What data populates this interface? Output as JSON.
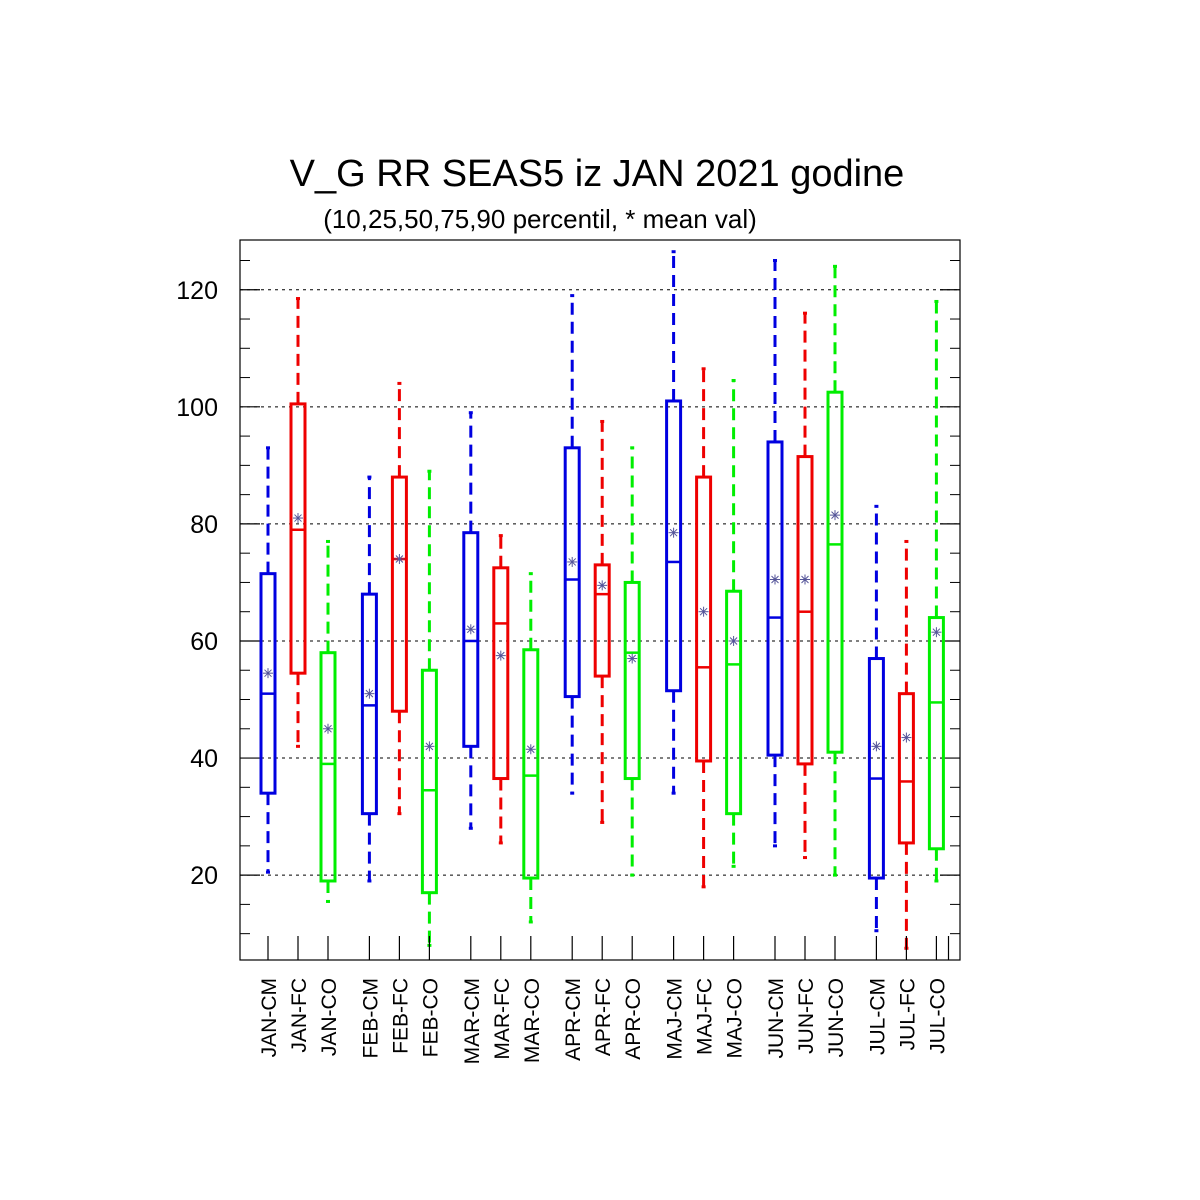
{
  "chart_data": {
    "type": "box",
    "title": "V_G RR SEAS5 iz JAN 2021 godine",
    "subtitle": "(10,25,50,75,90 percentil, * mean val)",
    "xlabel": "",
    "ylabel": "",
    "ylim": [
      5.5,
      128.5
    ],
    "yticks": [
      20,
      40,
      60,
      80,
      100,
      120
    ],
    "grid": true,
    "series_colors": {
      "CM": "#0000e0",
      "FC": "#ee0000",
      "CO": "#00ee00"
    },
    "mean_marker_color": "#555599",
    "categories": [
      "JAN-CM",
      "JAN-FC",
      "JAN-CO",
      "FEB-CM",
      "FEB-FC",
      "FEB-CO",
      "MAR-CM",
      "MAR-FC",
      "MAR-CO",
      "APR-CM",
      "APR-FC",
      "APR-CO",
      "MAJ-CM",
      "MAJ-FC",
      "MAJ-CO",
      "JUN-CM",
      "JUN-FC",
      "JUN-CO",
      "JUL-CM",
      "JUL-FC",
      "JUL-CO"
    ],
    "boxes": [
      {
        "label": "JAN-CM",
        "series": "CM",
        "p10": 20.5,
        "p25": 34,
        "p50": 51,
        "p75": 71.5,
        "p90": 93,
        "mean": 54.5
      },
      {
        "label": "JAN-FC",
        "series": "FC",
        "p10": 42,
        "p25": 54.5,
        "p50": 79,
        "p75": 100.5,
        "p90": 118.5,
        "mean": 81
      },
      {
        "label": "JAN-CO",
        "series": "CO",
        "p10": 15.5,
        "p25": 19,
        "p50": 39,
        "p75": 58,
        "p90": 77,
        "mean": 45
      },
      {
        "label": "FEB-CM",
        "series": "CM",
        "p10": 19,
        "p25": 30.5,
        "p50": 49,
        "p75": 68,
        "p90": 88,
        "mean": 51
      },
      {
        "label": "FEB-FC",
        "series": "FC",
        "p10": 30.5,
        "p25": 48,
        "p50": 74,
        "p75": 88,
        "p90": 104,
        "mean": 74
      },
      {
        "label": "FEB-CO",
        "series": "CO",
        "p10": 8,
        "p25": 17,
        "p50": 34.5,
        "p75": 55,
        "p90": 89,
        "mean": 42
      },
      {
        "label": "MAR-CM",
        "series": "CM",
        "p10": 28,
        "p25": 42,
        "p50": 60,
        "p75": 78.5,
        "p90": 99,
        "mean": 62
      },
      {
        "label": "MAR-FC",
        "series": "FC",
        "p10": 25.5,
        "p25": 36.5,
        "p50": 63,
        "p75": 72.5,
        "p90": 78,
        "mean": 57.5
      },
      {
        "label": "MAR-CO",
        "series": "CO",
        "p10": 12,
        "p25": 19.5,
        "p50": 37,
        "p75": 58.5,
        "p90": 71.5,
        "mean": 41.5
      },
      {
        "label": "APR-CM",
        "series": "CM",
        "p10": 34,
        "p25": 50.5,
        "p50": 70.5,
        "p75": 93,
        "p90": 119,
        "mean": 73.5
      },
      {
        "label": "APR-FC",
        "series": "FC",
        "p10": 29,
        "p25": 54,
        "p50": 68,
        "p75": 73,
        "p90": 97.5,
        "mean": 69.5
      },
      {
        "label": "APR-CO",
        "series": "CO",
        "p10": 20,
        "p25": 36.5,
        "p50": 58,
        "p75": 70,
        "p90": 93,
        "mean": 57
      },
      {
        "label": "MAJ-CM",
        "series": "CM",
        "p10": 34,
        "p25": 51.5,
        "p50": 73.5,
        "p75": 101,
        "p90": 126.5,
        "mean": 78.5
      },
      {
        "label": "MAJ-FC",
        "series": "FC",
        "p10": 18,
        "p25": 39.5,
        "p50": 55.5,
        "p75": 88,
        "p90": 106.5,
        "mean": 65
      },
      {
        "label": "MAJ-CO",
        "series": "CO",
        "p10": 21.5,
        "p25": 30.5,
        "p50": 56,
        "p75": 68.5,
        "p90": 104.5,
        "mean": 60
      },
      {
        "label": "JUN-CM",
        "series": "CM",
        "p10": 25,
        "p25": 40.5,
        "p50": 64,
        "p75": 94,
        "p90": 125,
        "mean": 70.5
      },
      {
        "label": "JUN-FC",
        "series": "FC",
        "p10": 23,
        "p25": 39,
        "p50": 65,
        "p75": 91.5,
        "p90": 116,
        "mean": 70.5
      },
      {
        "label": "JUN-CO",
        "series": "CO",
        "p10": 20,
        "p25": 41,
        "p50": 76.5,
        "p75": 102.5,
        "p90": 124,
        "mean": 81.5
      },
      {
        "label": "JUL-CM",
        "series": "CM",
        "p10": 10.5,
        "p25": 19.5,
        "p50": 36.5,
        "p75": 57,
        "p90": 83,
        "mean": 42
      },
      {
        "label": "JUL-FC",
        "series": "FC",
        "p10": 7.5,
        "p25": 25.5,
        "p50": 36,
        "p75": 51,
        "p90": 77,
        "mean": 43.5
      },
      {
        "label": "JUL-CO",
        "series": "CO",
        "p10": 19,
        "p25": 24.5,
        "p50": 49.5,
        "p75": 64,
        "p90": 118,
        "mean": 61.5
      }
    ]
  }
}
